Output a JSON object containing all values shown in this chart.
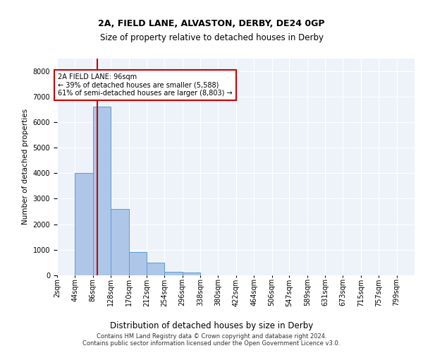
{
  "title_line1": "2A, FIELD LANE, ALVASTON, DERBY, DE24 0GP",
  "title_line2": "Size of property relative to detached houses in Derby",
  "xlabel": "Distribution of detached houses by size in Derby",
  "ylabel": "Number of detached properties",
  "footer_line1": "Contains HM Land Registry data © Crown copyright and database right 2024.",
  "footer_line2": "Contains public sector information licensed under the Open Government Licence v3.0.",
  "annotation_line1": "2A FIELD LANE: 96sqm",
  "annotation_line2": "← 39% of detached houses are smaller (5,588)",
  "annotation_line3": "61% of semi-detached houses are larger (8,803) →",
  "bar_edges": [
    2,
    44,
    86,
    128,
    170,
    212,
    254,
    296,
    338,
    380,
    422,
    464,
    506,
    547,
    589,
    631,
    673,
    715,
    757,
    799,
    841
  ],
  "bar_heights": [
    0,
    4000,
    6600,
    2600,
    900,
    500,
    150,
    100,
    0,
    0,
    0,
    0,
    0,
    0,
    0,
    0,
    0,
    0,
    0,
    0
  ],
  "bar_color": "#aec6e8",
  "bar_edge_color": "#5b9bd5",
  "red_line_x": 96,
  "ylim": [
    0,
    8500
  ],
  "yticks": [
    0,
    1000,
    2000,
    3000,
    4000,
    5000,
    6000,
    7000,
    8000
  ],
  "background_color": "#eef3fa",
  "grid_color": "#ffffff",
  "annotation_box_color": "#ffffff",
  "annotation_box_edge": "#cc0000",
  "title1_fontsize": 9,
  "title2_fontsize": 8.5,
  "ylabel_fontsize": 7.5,
  "xlabel_fontsize": 8.5,
  "footer_fontsize": 6,
  "tick_fontsize": 7,
  "annot_fontsize": 7
}
